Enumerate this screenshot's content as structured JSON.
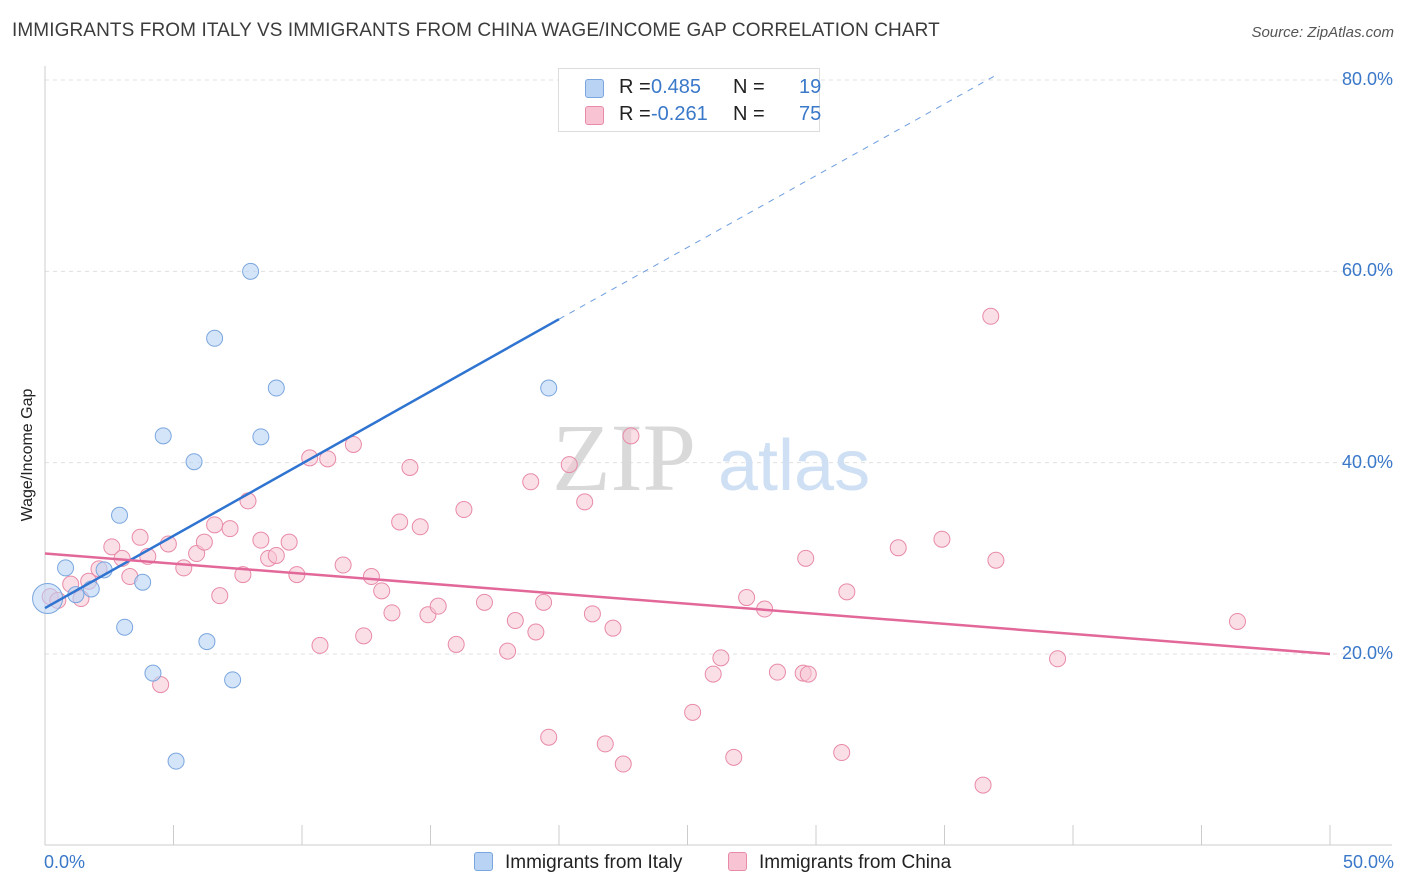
{
  "title": "IMMIGRANTS FROM ITALY VS IMMIGRANTS FROM CHINA WAGE/INCOME GAP CORRELATION CHART",
  "source": "Source: ZipAtlas.com",
  "watermark": {
    "zip": "ZIP",
    "atlas": "atlas"
  },
  "legend": {
    "italy": {
      "r_label": "R =",
      "r_value": "0.485",
      "n_label": "N =",
      "n_value": "19"
    },
    "china": {
      "r_label": "R =",
      "r_value": "-0.261",
      "n_label": "N =",
      "n_value": "75"
    }
  },
  "colors": {
    "italy_fill": "#b9d3f5",
    "italy_stroke": "#7aa6de",
    "italy_line": "#2f74d0",
    "china_fill": "#f8c4d4",
    "china_stroke": "#e88aa8",
    "china_line": "#e2689a",
    "tick_text": "#3a78c9",
    "grid": "#e0e0e0"
  },
  "chart_data": {
    "type": "scatter",
    "ylabel": "Wage/Income Gap",
    "xlim": [
      0,
      50
    ],
    "ylim": [
      0,
      85
    ],
    "x_tick_labels": [
      "0.0%",
      "50.0%"
    ],
    "y_ticks": [
      20,
      40,
      60,
      80
    ],
    "y_tick_labels": [
      "20.0%",
      "40.0%",
      "60.0%",
      "80.0%"
    ],
    "grid": true,
    "legend_position": "top-center",
    "series": [
      {
        "name": "Immigrants from Italy",
        "trend": {
          "x": [
            0,
            20
          ],
          "y": [
            24.8,
            55.0
          ],
          "dashed_to": [
            37,
            80.5
          ]
        },
        "points": [
          [
            0.1,
            25.8
          ],
          [
            0.8,
            29.0
          ],
          [
            1.2,
            26.2
          ],
          [
            1.8,
            26.8
          ],
          [
            2.3,
            28.8
          ],
          [
            2.9,
            34.5
          ],
          [
            3.1,
            22.8
          ],
          [
            3.8,
            27.5
          ],
          [
            4.2,
            18.0
          ],
          [
            4.6,
            42.8
          ],
          [
            5.1,
            8.8
          ],
          [
            5.8,
            40.1
          ],
          [
            6.3,
            21.3
          ],
          [
            6.6,
            53.0
          ],
          [
            7.3,
            17.3
          ],
          [
            8.0,
            60.0
          ],
          [
            8.4,
            42.7
          ],
          [
            9.0,
            47.8
          ],
          [
            19.6,
            47.8
          ]
        ]
      },
      {
        "name": "Immigrants from China",
        "trend": {
          "x": [
            0,
            50
          ],
          "y": [
            30.5,
            20.0
          ]
        },
        "points": [
          [
            0.2,
            26.0
          ],
          [
            0.5,
            25.6
          ],
          [
            1.0,
            27.3
          ],
          [
            1.4,
            25.8
          ],
          [
            1.7,
            27.6
          ],
          [
            2.1,
            28.9
          ],
          [
            2.6,
            31.2
          ],
          [
            3.0,
            30.0
          ],
          [
            3.3,
            28.1
          ],
          [
            3.7,
            32.2
          ],
          [
            4.0,
            30.2
          ],
          [
            4.5,
            16.8
          ],
          [
            4.8,
            31.5
          ],
          [
            5.4,
            29.0
          ],
          [
            5.9,
            30.5
          ],
          [
            6.2,
            31.7
          ],
          [
            6.6,
            33.5
          ],
          [
            6.8,
            26.1
          ],
          [
            7.2,
            33.1
          ],
          [
            7.7,
            28.3
          ],
          [
            7.9,
            36.0
          ],
          [
            8.4,
            31.9
          ],
          [
            8.7,
            30.0
          ],
          [
            9.0,
            30.3
          ],
          [
            9.5,
            31.7
          ],
          [
            9.8,
            28.3
          ],
          [
            10.3,
            40.5
          ],
          [
            10.7,
            20.9
          ],
          [
            11.0,
            40.4
          ],
          [
            11.6,
            29.3
          ],
          [
            12.0,
            41.9
          ],
          [
            12.4,
            21.9
          ],
          [
            12.7,
            28.1
          ],
          [
            13.1,
            26.6
          ],
          [
            13.5,
            24.3
          ],
          [
            13.8,
            33.8
          ],
          [
            14.2,
            39.5
          ],
          [
            14.6,
            33.3
          ],
          [
            14.9,
            24.1
          ],
          [
            15.3,
            25.0
          ],
          [
            16.0,
            21.0
          ],
          [
            16.3,
            35.1
          ],
          [
            17.1,
            25.4
          ],
          [
            18.0,
            20.3
          ],
          [
            18.3,
            23.5
          ],
          [
            18.9,
            38.0
          ],
          [
            19.1,
            22.3
          ],
          [
            19.4,
            25.4
          ],
          [
            19.6,
            11.3
          ],
          [
            20.4,
            39.8
          ],
          [
            21.0,
            35.9
          ],
          [
            21.3,
            24.2
          ],
          [
            21.8,
            10.6
          ],
          [
            22.1,
            22.7
          ],
          [
            22.5,
            8.5
          ],
          [
            22.8,
            42.8
          ],
          [
            25.2,
            13.9
          ],
          [
            26.0,
            17.9
          ],
          [
            26.3,
            19.6
          ],
          [
            26.8,
            9.2
          ],
          [
            27.3,
            25.9
          ],
          [
            28.0,
            24.7
          ],
          [
            28.5,
            18.1
          ],
          [
            29.5,
            18.0
          ],
          [
            29.6,
            30.0
          ],
          [
            29.7,
            17.9
          ],
          [
            31.0,
            9.7
          ],
          [
            31.2,
            26.5
          ],
          [
            33.2,
            31.1
          ],
          [
            34.9,
            32.0
          ],
          [
            36.5,
            6.3
          ],
          [
            36.8,
            55.3
          ],
          [
            37.0,
            29.8
          ],
          [
            39.4,
            19.5
          ],
          [
            46.4,
            23.4
          ]
        ]
      }
    ]
  }
}
